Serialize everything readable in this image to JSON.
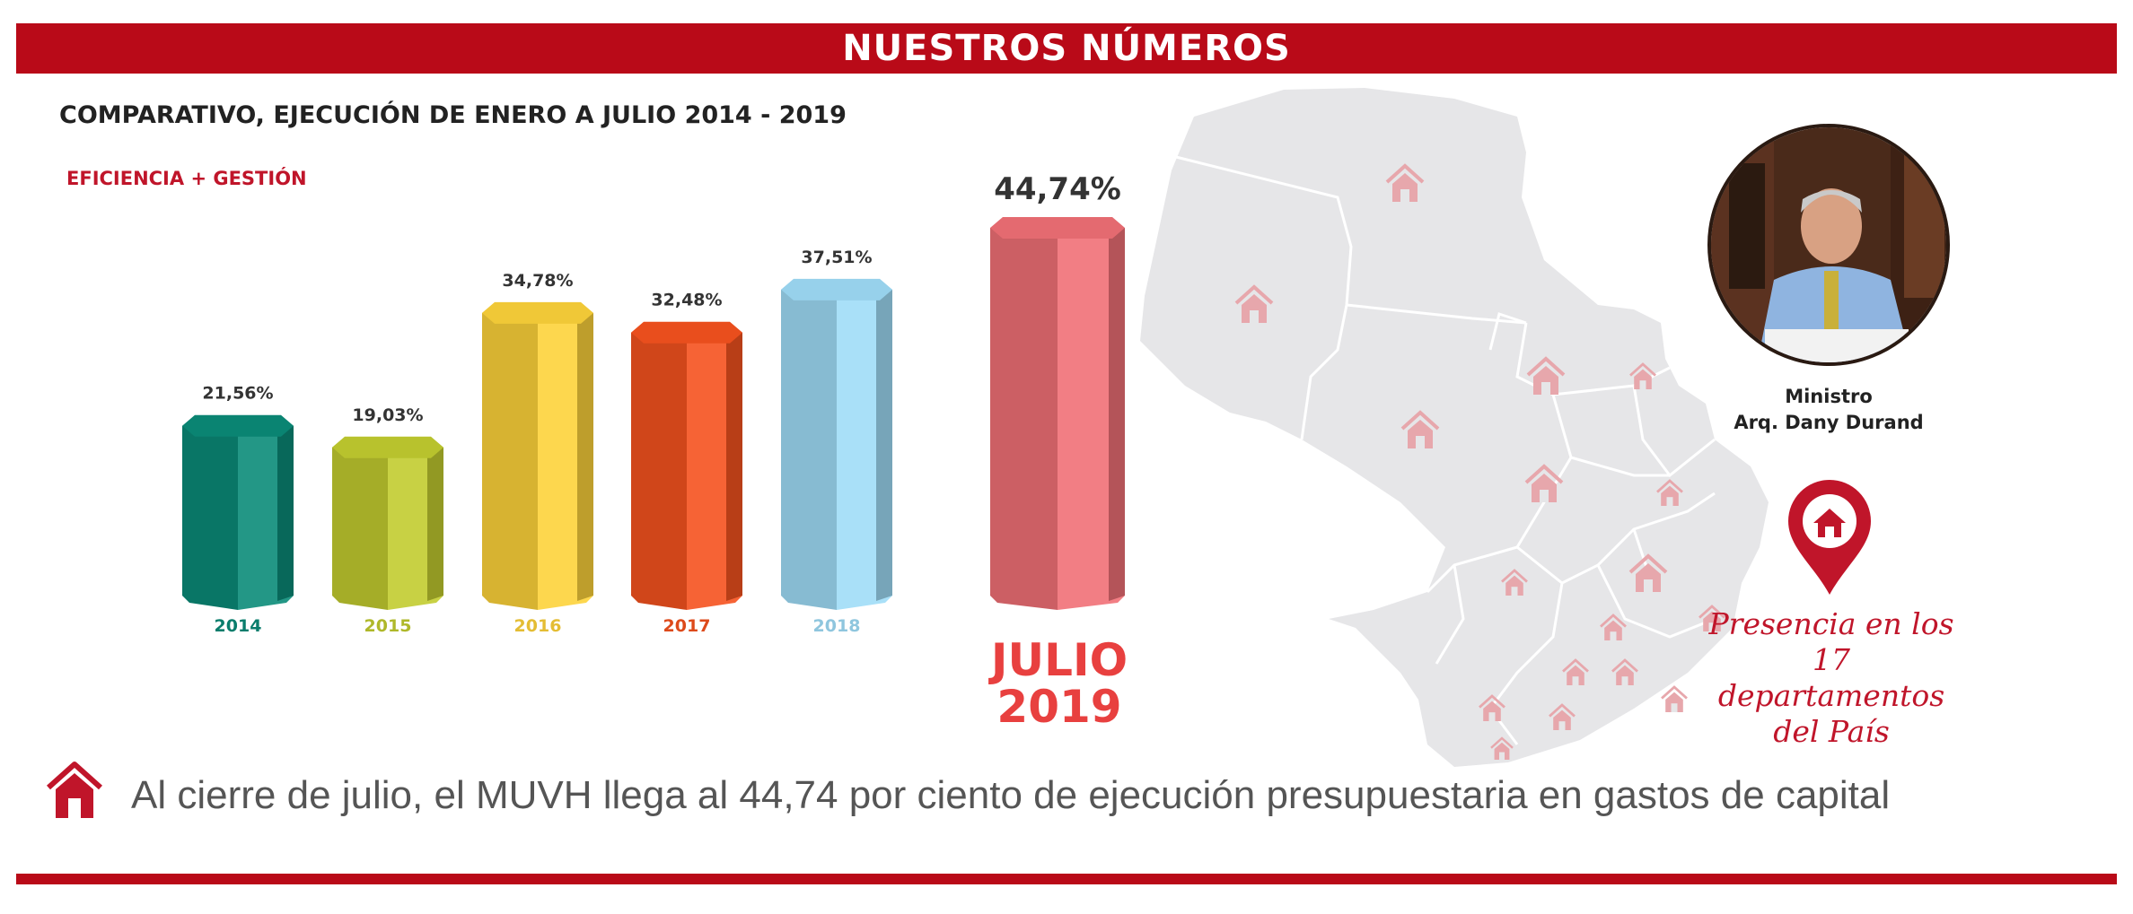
{
  "header": {
    "title": "NUESTROS NÚMEROS"
  },
  "subtitle": "COMPARATIVO, EJECUCIÓN DE ENERO A JULIO 2014 - 2019",
  "tagline": "EFICIENCIA + GESTIÓN",
  "chart_data": {
    "type": "bar",
    "title": "",
    "categories": [
      "2014",
      "2015",
      "2016",
      "2017",
      "2018",
      "JULIO 2019"
    ],
    "values": [
      21.56,
      19.03,
      34.78,
      32.48,
      37.51,
      44.74
    ],
    "value_labels": [
      "21,56%",
      "19,03%",
      "34,78%",
      "32,48%",
      "37,51%",
      "44,74%"
    ],
    "ylim": [
      0,
      50
    ],
    "grid": false,
    "legend": "none",
    "colors": [
      "#0b8b78",
      "#c2cc2f",
      "#fdd23a",
      "#f5521e",
      "#9fdcf7",
      "#f07076"
    ]
  },
  "highlight": {
    "line1": "JULIO",
    "line2": "2019"
  },
  "minister": {
    "role": "Ministro",
    "name": "Arq. Dany Durand"
  },
  "presence": {
    "line1": "Presencia en los",
    "line2": "17 departamentos",
    "line3": "del País"
  },
  "footer": {
    "text": "Al cierre de julio, el MUVH llega al 44,74 por ciento de ejecución presupuestaria en gastos de capital"
  },
  "colors": {
    "brand_red": "#b90a18",
    "accent_red": "#c0152a",
    "map_gray": "#e6e6e8",
    "house_pink": "#e7a7ac"
  }
}
